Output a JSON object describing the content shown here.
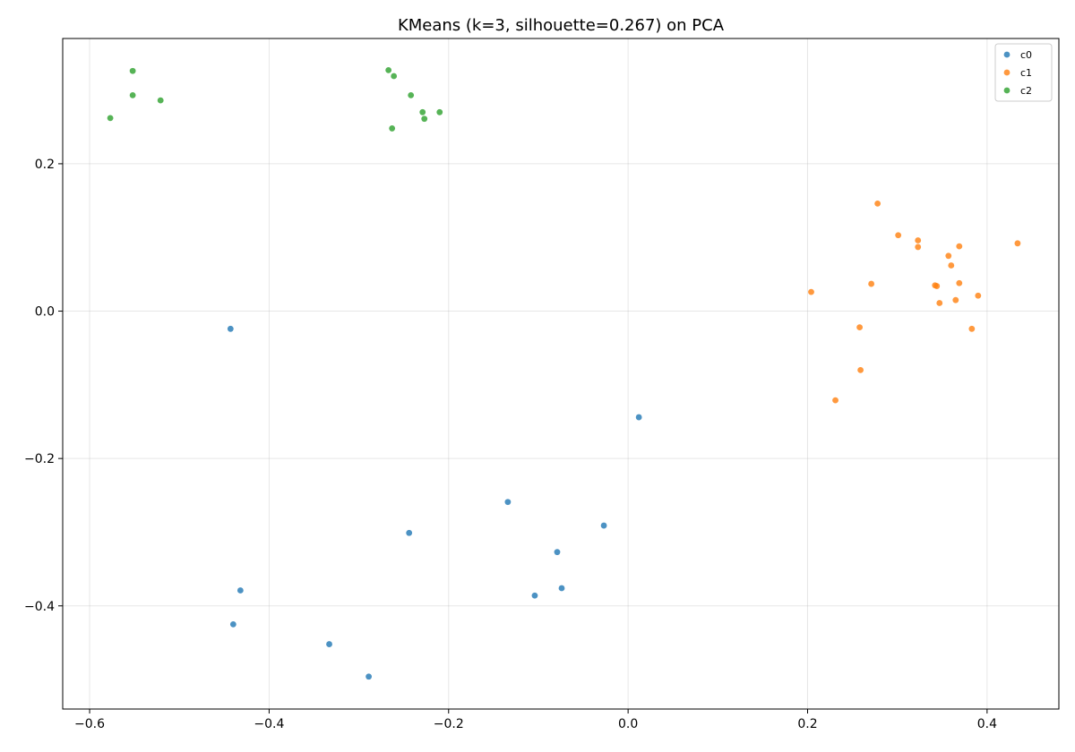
{
  "chart_data": {
    "type": "scatter",
    "title": "KMeans (k=3, silhouette=0.267) on PCA",
    "xlabel": "",
    "ylabel": "",
    "xlim": [
      -0.63,
      0.48
    ],
    "ylim": [
      -0.54,
      0.37
    ],
    "xticks": [
      -0.6,
      -0.4,
      -0.2,
      0.0,
      0.2,
      0.4
    ],
    "yticks": [
      -0.4,
      -0.2,
      0.0,
      0.2
    ],
    "xtick_labels": [
      "−0.6",
      "−0.4",
      "−0.2",
      "0.0",
      "0.2",
      "0.4"
    ],
    "ytick_labels": [
      "−0.4",
      "−0.2",
      "0.0",
      "0.2"
    ],
    "grid": true,
    "legend_position": "top-right",
    "series": [
      {
        "name": "c0",
        "color": "#1f77b4",
        "points": [
          [
            -0.443,
            -0.024
          ],
          [
            0.012,
            -0.144
          ],
          [
            -0.134,
            -0.259
          ],
          [
            -0.027,
            -0.291
          ],
          [
            -0.244,
            -0.301
          ],
          [
            -0.079,
            -0.327
          ],
          [
            -0.432,
            -0.379
          ],
          [
            -0.074,
            -0.376
          ],
          [
            -0.104,
            -0.386
          ],
          [
            -0.44,
            -0.425
          ],
          [
            -0.333,
            -0.452
          ],
          [
            -0.289,
            -0.496
          ]
        ]
      },
      {
        "name": "c1",
        "color": "#ff7f0e",
        "points": [
          [
            0.278,
            0.146
          ],
          [
            0.301,
            0.103
          ],
          [
            0.323,
            0.096
          ],
          [
            0.323,
            0.087
          ],
          [
            0.369,
            0.088
          ],
          [
            0.434,
            0.092
          ],
          [
            0.357,
            0.075
          ],
          [
            0.36,
            0.062
          ],
          [
            0.204,
            0.026
          ],
          [
            0.271,
            0.037
          ],
          [
            0.342,
            0.035
          ],
          [
            0.344,
            0.034
          ],
          [
            0.369,
            0.038
          ],
          [
            0.39,
            0.021
          ],
          [
            0.347,
            0.011
          ],
          [
            0.365,
            0.015
          ],
          [
            0.258,
            -0.022
          ],
          [
            0.383,
            -0.024
          ],
          [
            0.259,
            -0.08
          ],
          [
            0.231,
            -0.121
          ]
        ]
      },
      {
        "name": "c2",
        "color": "#2ca02c",
        "points": [
          [
            -0.552,
            0.326
          ],
          [
            -0.267,
            0.327
          ],
          [
            -0.261,
            0.319
          ],
          [
            -0.552,
            0.293
          ],
          [
            -0.242,
            0.293
          ],
          [
            -0.521,
            0.286
          ],
          [
            -0.229,
            0.27
          ],
          [
            -0.21,
            0.27
          ],
          [
            -0.577,
            0.262
          ],
          [
            -0.227,
            0.261
          ],
          [
            -0.263,
            0.248
          ]
        ]
      }
    ]
  }
}
